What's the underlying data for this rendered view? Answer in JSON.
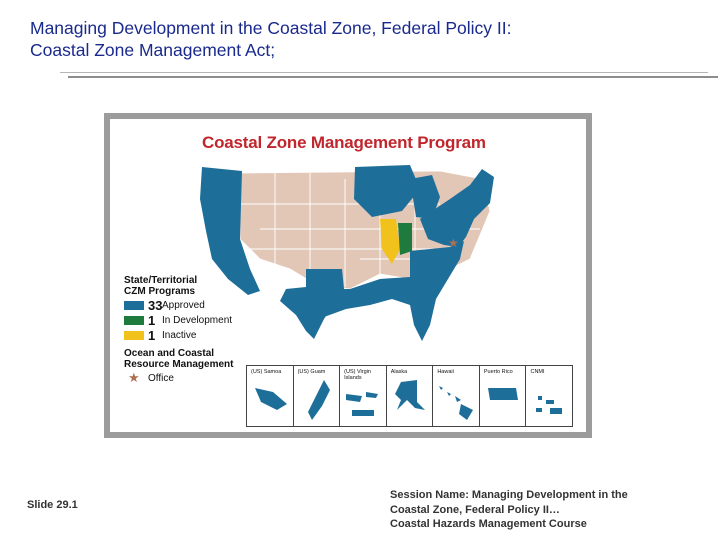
{
  "slide": {
    "title_line1": "Managing Development in the Coastal Zone, Federal Policy II:",
    "title_line2": "Coastal Zone Management Act;",
    "number": "Slide 29.1",
    "session_line1": "Session Name: Managing Development in  the",
    "session_line2": "Coastal Zone, Federal Policy II…",
    "session_line3": "Coastal Hazards Management Course"
  },
  "map": {
    "title": "Coastal Zone Management Program",
    "legend": {
      "header_line1": "State/Territorial",
      "header_line2": "CZM Programs",
      "items": [
        {
          "count": "33",
          "label": "Approved",
          "color": "#1e6e9a"
        },
        {
          "count": "1",
          "label": "In Development",
          "color": "#1f7a3e"
        },
        {
          "count": "1",
          "label": "Inactive",
          "color": "#f2c21c"
        }
      ],
      "ocean_line1": "Ocean and Coastal",
      "ocean_line2": "Resource Management",
      "office_label": "Office",
      "office_icon": "star-icon"
    },
    "insets": [
      {
        "label": "(US) Samoa"
      },
      {
        "label": "(US) Guam"
      },
      {
        "label": "(US) Virgin Islands"
      },
      {
        "label": "Alaska"
      },
      {
        "label": "Hawaii"
      },
      {
        "label": "Puerto Rico"
      },
      {
        "label": "CNMI"
      }
    ],
    "colors": {
      "coastal": "#1e6e9a",
      "inland": "#e2c7b7",
      "development": "#1f7a3e",
      "inactive": "#f2c21c",
      "title": "#c0272d"
    }
  }
}
